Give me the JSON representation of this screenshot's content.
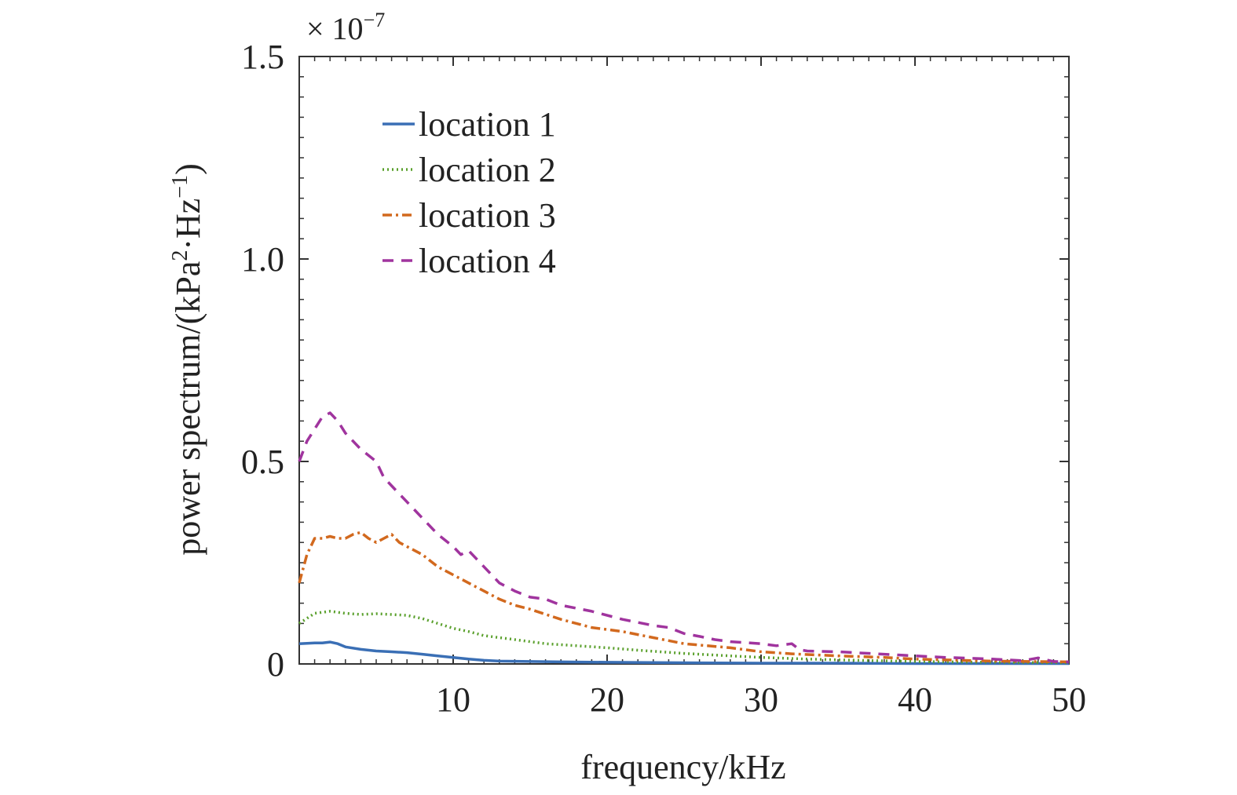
{
  "chart_data": {
    "type": "line",
    "title": "",
    "xlabel": "frequency/kHz",
    "ylabel": "power spectrum/(kPa",
    "ylabel_unit_sup1": "2",
    "ylabel_unit_mid": "·Hz",
    "ylabel_unit_sup2": "−1",
    "ylabel_unit_end": ")",
    "exponent_label": "× 10",
    "exponent_power": "−7",
    "xlim": [
      0,
      50
    ],
    "ylim": [
      0,
      1.5
    ],
    "x_ticks": [
      10,
      20,
      30,
      40,
      50
    ],
    "x_tick_labels": [
      "10",
      "20",
      "30",
      "40",
      "50"
    ],
    "y_ticks": [
      0,
      0.5,
      1.0,
      1.5
    ],
    "y_tick_labels": [
      "0",
      "0.5",
      "1.0",
      "1.5"
    ],
    "grid": false,
    "legend_position": "top-left",
    "series": [
      {
        "name": "location 1",
        "color": "#3a6fb5",
        "style": "solid",
        "x": [
          0,
          1,
          1.5,
          2,
          2.5,
          3,
          4,
          5,
          6,
          7,
          8,
          9,
          10,
          11,
          12,
          13,
          15,
          17,
          20,
          25,
          30,
          35,
          40,
          45,
          50
        ],
        "y": [
          0.05,
          0.052,
          0.052,
          0.054,
          0.05,
          0.042,
          0.036,
          0.032,
          0.03,
          0.028,
          0.024,
          0.02,
          0.016,
          0.012,
          0.009,
          0.007,
          0.006,
          0.005,
          0.004,
          0.003,
          0.002,
          0.002,
          0.001,
          0.001,
          0.001
        ]
      },
      {
        "name": "location 2",
        "color": "#5aa02c",
        "style": "dotted",
        "x": [
          0,
          1,
          2,
          3,
          4,
          5,
          6,
          7,
          8,
          9,
          10,
          11,
          12,
          14,
          16,
          18,
          20,
          22,
          25,
          28,
          30,
          33,
          35,
          40,
          45,
          50
        ],
        "y": [
          0.1,
          0.125,
          0.13,
          0.125,
          0.122,
          0.124,
          0.122,
          0.12,
          0.112,
          0.1,
          0.088,
          0.08,
          0.07,
          0.06,
          0.05,
          0.045,
          0.04,
          0.034,
          0.026,
          0.02,
          0.016,
          0.012,
          0.01,
          0.006,
          0.004,
          0.003
        ]
      },
      {
        "name": "location 3",
        "color": "#d2691e",
        "style": "dashdot",
        "x": [
          0,
          0.5,
          1,
          1.5,
          2,
          2.5,
          3,
          3.5,
          4,
          4.5,
          5,
          5.5,
          6,
          6.5,
          7,
          8,
          9,
          10,
          11,
          12,
          13,
          14,
          15,
          17,
          19,
          21,
          23,
          25,
          28,
          30,
          32,
          35,
          38,
          40,
          45,
          50
        ],
        "y": [
          0.2,
          0.27,
          0.31,
          0.31,
          0.315,
          0.31,
          0.31,
          0.32,
          0.325,
          0.31,
          0.3,
          0.31,
          0.32,
          0.3,
          0.29,
          0.27,
          0.24,
          0.22,
          0.2,
          0.18,
          0.16,
          0.145,
          0.135,
          0.11,
          0.09,
          0.08,
          0.065,
          0.05,
          0.04,
          0.03,
          0.025,
          0.02,
          0.016,
          0.012,
          0.007,
          0.005
        ]
      },
      {
        "name": "location 4",
        "color": "#a0349e",
        "style": "dashed",
        "x": [
          0,
          0.5,
          1,
          1.5,
          2,
          2.5,
          3,
          3.5,
          4,
          5,
          5.5,
          6,
          7,
          8,
          9,
          10,
          10.5,
          11,
          12,
          13,
          14,
          15,
          16,
          17,
          19,
          21,
          23,
          24,
          25,
          26,
          27,
          28,
          30,
          31,
          32,
          32.5,
          33,
          35,
          38,
          40,
          42,
          45,
          47,
          48,
          49,
          50
        ],
        "y": [
          0.5,
          0.55,
          0.58,
          0.61,
          0.62,
          0.6,
          0.57,
          0.55,
          0.53,
          0.5,
          0.46,
          0.44,
          0.4,
          0.36,
          0.32,
          0.29,
          0.27,
          0.28,
          0.24,
          0.2,
          0.18,
          0.165,
          0.16,
          0.145,
          0.13,
          0.11,
          0.095,
          0.09,
          0.075,
          0.068,
          0.06,
          0.055,
          0.05,
          0.045,
          0.05,
          0.035,
          0.032,
          0.03,
          0.024,
          0.02,
          0.016,
          0.012,
          0.008,
          0.015,
          0.006,
          0.005
        ]
      }
    ]
  }
}
